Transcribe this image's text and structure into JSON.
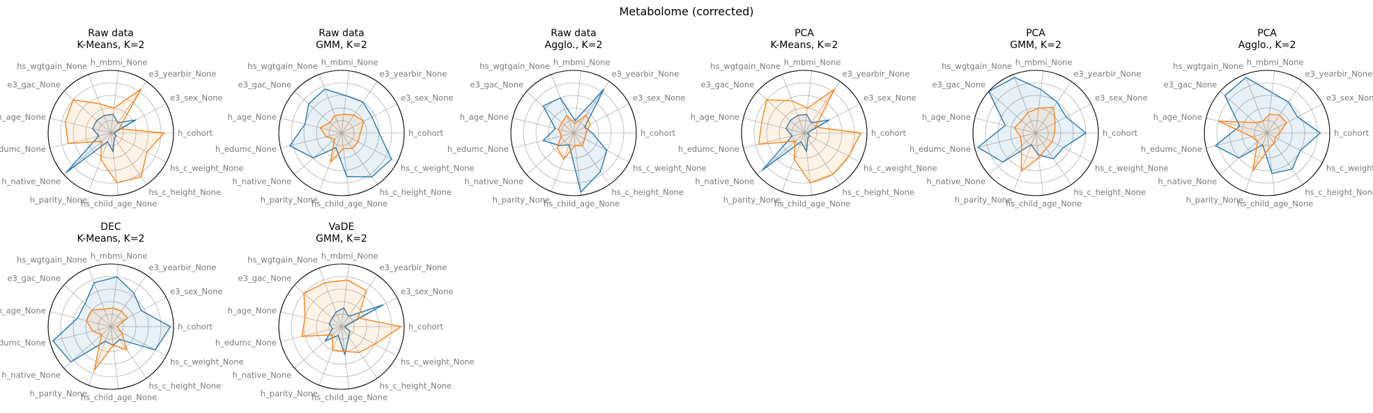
{
  "suptitle": "Metabolome (corrected)",
  "colors": {
    "cluster_1": "#1f77b4",
    "cluster_2": "#ff7f0e"
  },
  "chart_data": [
    {
      "type": "radar",
      "title_line1": "Raw data",
      "title_line2": "K-Means, K=2",
      "axes": [
        "h_cohort",
        "e3_sex_None",
        "e3_yearbir_None",
        "h_mbmi_None",
        "hs_wgtgain_None",
        "e3_gac_None",
        "h_age_None",
        "h_edumc_None",
        "h_native_None",
        "h_parity_None",
        "hs_child_age_None",
        "hs_c_height_None",
        "hs_c_weight_None"
      ],
      "rlim": [
        0,
        1
      ],
      "grid": true,
      "series": [
        {
          "values": [
            0.05,
            0.45,
            0.2,
            0.3,
            0.3,
            0.3,
            0.3,
            0.2,
            0.95,
            0.15,
            0.3,
            0.1,
            0.1
          ]
        },
        {
          "values": [
            0.85,
            0.15,
            0.85,
            0.4,
            0.5,
            0.8,
            0.75,
            0.7,
            0.2,
            0.45,
            0.8,
            0.85,
            0.65
          ]
        }
      ]
    },
    {
      "type": "radar",
      "title_line1": "Raw data",
      "title_line2": "GMM, K=2",
      "axes": [
        "h_cohort",
        "e3_sex_None",
        "e3_yearbir_None",
        "h_mbmi_None",
        "hs_wgtgain_None",
        "e3_gac_None",
        "h_age_None",
        "h_edumc_None",
        "h_native_None",
        "h_parity_None",
        "hs_child_age_None",
        "hs_c_height_None",
        "hs_c_weight_None"
      ],
      "rlim": [
        0,
        1
      ],
      "grid": true,
      "series": [
        {
          "values": [
            0.6,
            0.55,
            0.6,
            0.6,
            0.75,
            0.7,
            0.6,
            0.85,
            0.6,
            0.25,
            0.7,
            0.85,
            0.9
          ]
        },
        {
          "values": [
            0.3,
            0.4,
            0.35,
            0.3,
            0.3,
            0.25,
            0.35,
            0.25,
            0.15,
            0.5,
            0.25,
            0.3,
            0.3
          ]
        }
      ]
    },
    {
      "type": "radar",
      "title_line1": "Raw data",
      "title_line2": "Agglo., K=2",
      "axes": [
        "h_cohort",
        "e3_sex_None",
        "e3_yearbir_None",
        "h_mbmi_None",
        "hs_wgtgain_None",
        "e3_gac_None",
        "h_age_None",
        "h_edumc_None",
        "h_native_None",
        "h_parity_None",
        "hs_child_age_None",
        "hs_c_height_None",
        "hs_c_weight_None"
      ],
      "rlim": [
        0,
        1
      ],
      "grid": true,
      "series": [
        {
          "values": [
            0.3,
            0.2,
            0.85,
            0.2,
            0.6,
            0.65,
            0.3,
            0.5,
            0.3,
            0.2,
            0.95,
            0.75,
            0.6
          ]
        },
        {
          "values": [
            0.2,
            0.3,
            0.35,
            0.15,
            0.3,
            0.25,
            0.25,
            0.2,
            0.35,
            0.45,
            0.2,
            0.25,
            0.2
          ]
        }
      ]
    },
    {
      "type": "radar",
      "title_line1": "PCA",
      "title_line2": "K-Means, K=2",
      "axes": [
        "h_cohort",
        "e3_sex_None",
        "e3_yearbir_None",
        "h_mbmi_None",
        "hs_wgtgain_None",
        "e3_gac_None",
        "h_age_None",
        "h_edumc_None",
        "h_native_None",
        "h_parity_None",
        "hs_child_age_None",
        "hs_c_height_None",
        "hs_c_weight_None"
      ],
      "rlim": [
        0,
        1
      ],
      "grid": true,
      "series": [
        {
          "values": [
            0.05,
            0.45,
            0.2,
            0.3,
            0.3,
            0.3,
            0.3,
            0.2,
            0.9,
            0.15,
            0.3,
            0.1,
            0.1
          ]
        },
        {
          "values": [
            0.9,
            0.2,
            0.85,
            0.4,
            0.55,
            0.8,
            0.7,
            0.75,
            0.2,
            0.45,
            0.8,
            0.8,
            0.8
          ]
        }
      ]
    },
    {
      "type": "radar",
      "title_line1": "PCA",
      "title_line2": "GMM, K=2",
      "axes": [
        "h_cohort",
        "e3_sex_None",
        "e3_yearbir_None",
        "h_mbmi_None",
        "hs_wgtgain_None",
        "e3_gac_None",
        "h_age_None",
        "h_edumc_None",
        "h_native_None",
        "h_parity_None",
        "hs_child_age_None",
        "hs_c_height_None",
        "hs_c_weight_None"
      ],
      "rlim": [
        0,
        1
      ],
      "grid": true,
      "series": [
        {
          "values": [
            0.8,
            0.55,
            0.6,
            0.7,
            0.95,
            1.0,
            0.5,
            0.95,
            0.7,
            0.2,
            0.35,
            0.5,
            0.5
          ]
        },
        {
          "values": [
            0.3,
            0.35,
            0.5,
            0.4,
            0.35,
            0.3,
            0.35,
            0.25,
            0.3,
            0.65,
            0.4,
            0.3,
            0.3
          ]
        }
      ]
    },
    {
      "type": "radar",
      "title_line1": "PCA",
      "title_line2": "Agglo., K=2",
      "axes": [
        "h_cohort",
        "e3_sex_None",
        "e3_yearbir_None",
        "h_mbmi_None",
        "hs_wgtgain_None",
        "e3_gac_None",
        "h_age_None",
        "h_edumc_None",
        "h_native_None",
        "h_parity_None",
        "hs_child_age_None",
        "hs_c_height_None",
        "hs_c_weight_None"
      ],
      "rlim": [
        0,
        1
      ],
      "grid": true,
      "series": [
        {
          "values": [
            0.85,
            0.55,
            0.6,
            0.65,
            0.95,
            0.9,
            0.45,
            0.85,
            0.6,
            0.2,
            0.65,
            0.7,
            0.6
          ]
        },
        {
          "values": [
            0.2,
            0.35,
            0.35,
            0.3,
            0.2,
            0.25,
            0.8,
            0.25,
            0.2,
            0.65,
            0.25,
            0.2,
            0.15
          ]
        }
      ]
    },
    {
      "type": "radar",
      "title_line1": "DEC",
      "title_line2": "K-Means, K=2",
      "axes": [
        "h_cohort",
        "e3_sex_None",
        "e3_yearbir_None",
        "h_mbmi_None",
        "hs_wgtgain_None",
        "e3_gac_None",
        "h_age_None",
        "h_edumc_None",
        "h_native_None",
        "h_parity_None",
        "hs_child_age_None",
        "hs_c_height_None",
        "hs_c_weight_None"
      ],
      "rlim": [
        0,
        1
      ],
      "grid": true,
      "series": [
        {
          "values": [
            0.95,
            0.55,
            0.65,
            0.8,
            0.75,
            0.55,
            0.55,
            0.95,
            0.85,
            0.25,
            0.3,
            0.25,
            0.8
          ]
        },
        {
          "values": [
            0.1,
            0.3,
            0.3,
            0.3,
            0.3,
            0.4,
            0.4,
            0.3,
            0.2,
            0.75,
            0.3,
            0.45,
            0.2
          ]
        }
      ]
    },
    {
      "type": "radar",
      "title_line1": "VaDE",
      "title_line2": "GMM, K=2",
      "axes": [
        "h_cohort",
        "e3_sex_None",
        "e3_yearbir_None",
        "h_mbmi_None",
        "hs_wgtgain_None",
        "e3_gac_None",
        "h_age_None",
        "h_edumc_None",
        "h_native_None",
        "h_parity_None",
        "hs_child_age_None",
        "hs_c_height_None",
        "hs_c_weight_None"
      ],
      "rlim": [
        0,
        1
      ],
      "grid": true,
      "series": [
        {
          "values": [
            0.05,
            0.75,
            0.2,
            0.3,
            0.25,
            0.2,
            0.2,
            0.15,
            0.35,
            0.15,
            0.45,
            0.2,
            0.15
          ]
        },
        {
          "values": [
            0.95,
            0.3,
            0.7,
            0.75,
            0.75,
            0.8,
            0.6,
            0.65,
            0.2,
            0.4,
            0.4,
            0.5,
            0.6
          ]
        }
      ]
    }
  ]
}
